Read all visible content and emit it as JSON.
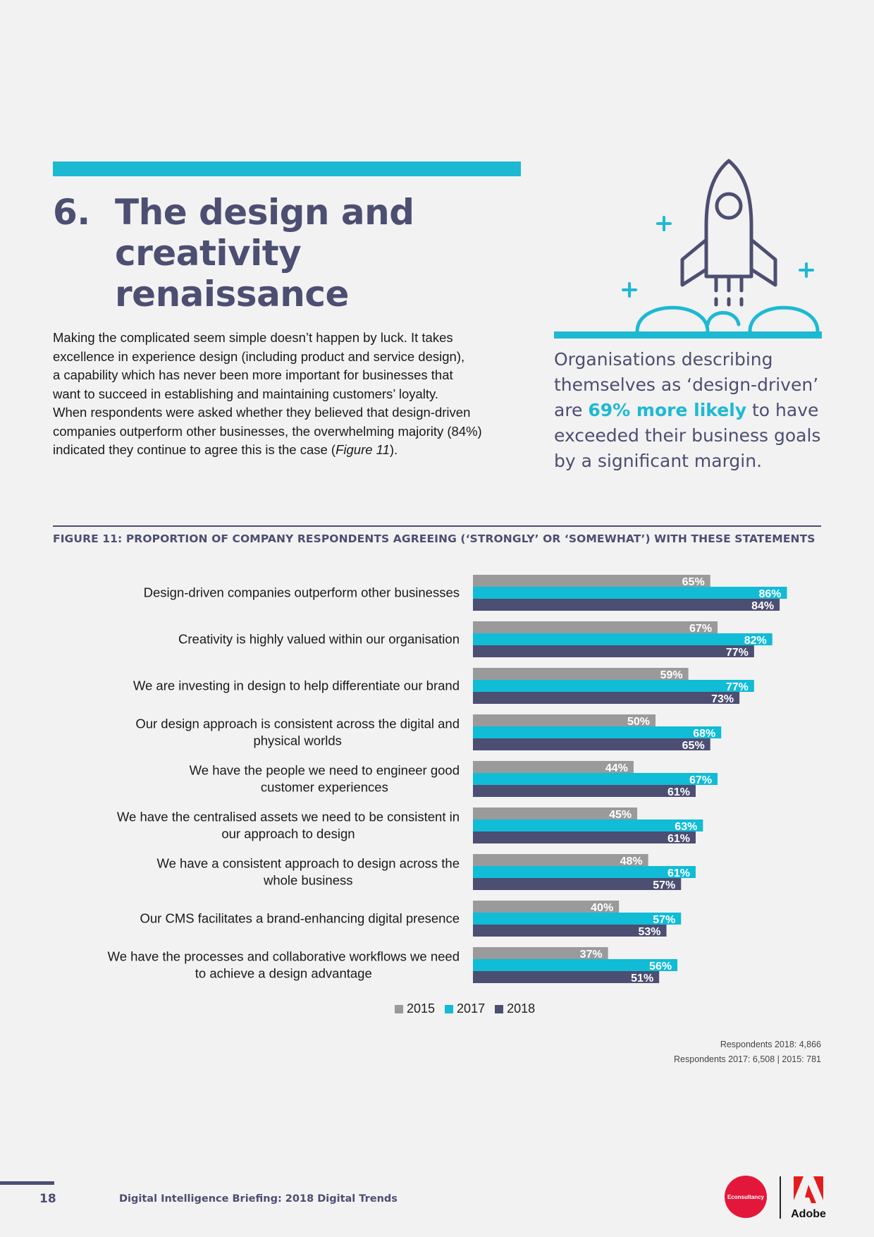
{
  "section": {
    "number": "6.",
    "title_line1": "The design and",
    "title_line2": "creativity renaissance"
  },
  "intro": {
    "line1": "Making the complicated seem simple doesn’t happen by luck. It takes",
    "line2": "excellence in experience design (including product and service design),",
    "line3": "a capability which has never been more important for businesses that",
    "line4": "want to succeed in establishing and maintaining customers’ loyalty.",
    "line5": "When respondents were asked whether they believed that design-driven",
    "line6": "companies outperform other businesses, the overwhelming majority (84%)",
    "line7_pre": "indicated they continue to agree this is the case (",
    "line7_ref": "Figure 11",
    "line7_post": ")."
  },
  "callout": {
    "line1": "Organisations describing",
    "line2": "themselves as ‘design-driven’",
    "line3_pre": "are ",
    "line3_hl": "69% more likely",
    "line3_post": " to have",
    "line4": "exceeded their business goals",
    "line5": "by a significant margin."
  },
  "figure": {
    "caption": "FIGURE 11: PROPORTION OF COMPANY RESPONDENTS AGREEING (‘STRONGLY’ OR ‘SOMEWHAT’) WITH THESE STATEMENTS"
  },
  "chart_data": {
    "type": "bar",
    "orientation": "horizontal",
    "categories": [
      [
        "Design-driven companies outperform other businesses"
      ],
      [
        "Creativity is highly valued within our organisation"
      ],
      [
        "We are investing in design to help differentiate our brand"
      ],
      [
        "Our design approach is consistent across the digital and",
        "physical worlds"
      ],
      [
        "We have the people we need to engineer good",
        "customer experiences"
      ],
      [
        "We have the centralised assets we need to be consistent in",
        "our approach to design"
      ],
      [
        "We have a consistent approach to design across the",
        "whole business"
      ],
      [
        "Our CMS facilitates a brand-enhancing digital presence"
      ],
      [
        "We have the processes and collaborative workflows we need",
        "to achieve a design advantage"
      ]
    ],
    "series": [
      {
        "name": "2015",
        "color": "#9a9a9a",
        "values": [
          65,
          67,
          59,
          50,
          44,
          45,
          48,
          40,
          37
        ]
      },
      {
        "name": "2017",
        "color": "#10bcd6",
        "values": [
          86,
          82,
          77,
          68,
          67,
          63,
          61,
          57,
          56
        ]
      },
      {
        "name": "2018",
        "color": "#4c4e72",
        "values": [
          84,
          77,
          73,
          65,
          61,
          61,
          57,
          53,
          51
        ]
      }
    ],
    "value_suffix": "%",
    "legend": "bottom"
  },
  "legend": {
    "s2015": "2015",
    "s2017": "2017",
    "s2018": "2018"
  },
  "respondents": {
    "line1": "Respondents 2018: 4,866",
    "line2": "Respondents 2017: 6,508 | 2015: 781"
  },
  "footer": {
    "page_number": "18",
    "title": "Digital Intelligence Briefing: 2018 Digital Trends",
    "econsultancy": "Econsultancy",
    "adobe": "Adobe"
  }
}
